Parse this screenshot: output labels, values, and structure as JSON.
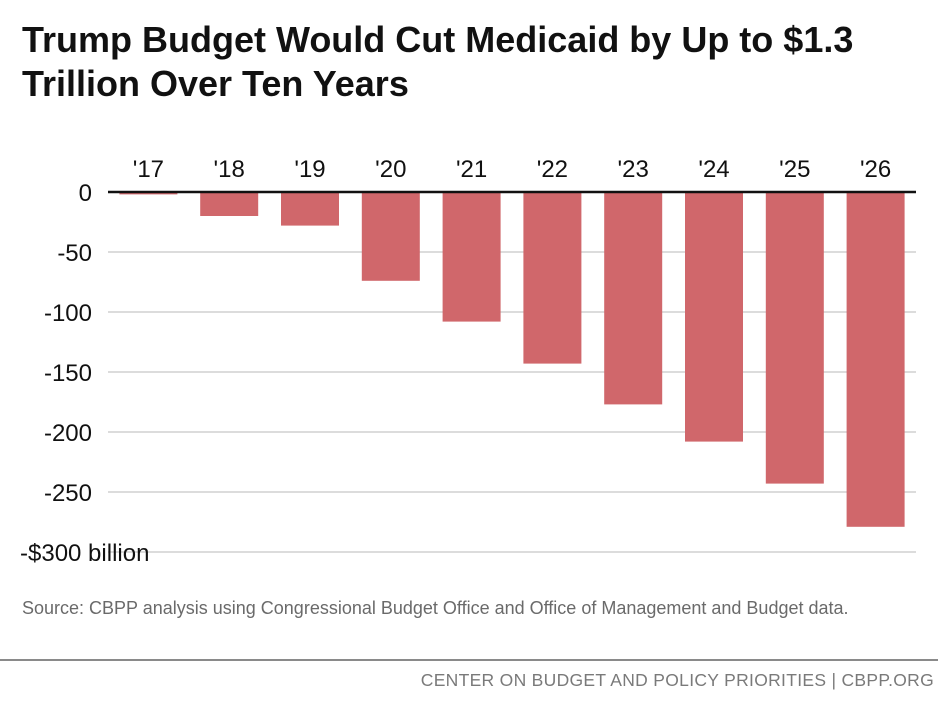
{
  "title": "Trump Budget Would Cut Medicaid by Up to $1.3 Trillion Over Ten Years",
  "source_note": "Source: CBPP analysis using Congressional Budget Office and Office of Management and Budget data.",
  "footer": "CENTER ON BUDGET AND POLICY PRIORITIES | CBPP.ORG",
  "colors": {
    "bar": "#d0676b",
    "grid": "#b9b9b9",
    "axis": "#111111"
  },
  "chart_data": {
    "type": "bar",
    "title": "Trump Budget Would Cut Medicaid by Up to $1.3 Trillion Over Ten Years",
    "xlabel": "",
    "ylabel": "",
    "x_axis_position": "top",
    "categories": [
      "'17",
      "'18",
      "'19",
      "'20",
      "'21",
      "'22",
      "'23",
      "'24",
      "'25",
      "'26"
    ],
    "values": [
      -2,
      -20,
      -28,
      -74,
      -108,
      -143,
      -177,
      -208,
      -243,
      -279
    ],
    "ylim": [
      -300,
      0
    ],
    "yticks": [
      0,
      -50,
      -100,
      -150,
      -200,
      -250,
      -300
    ],
    "ytick_labels": [
      "0",
      "-50",
      "-100",
      "-150",
      "-200",
      "-250",
      "-$300 billion"
    ],
    "grid": true
  }
}
